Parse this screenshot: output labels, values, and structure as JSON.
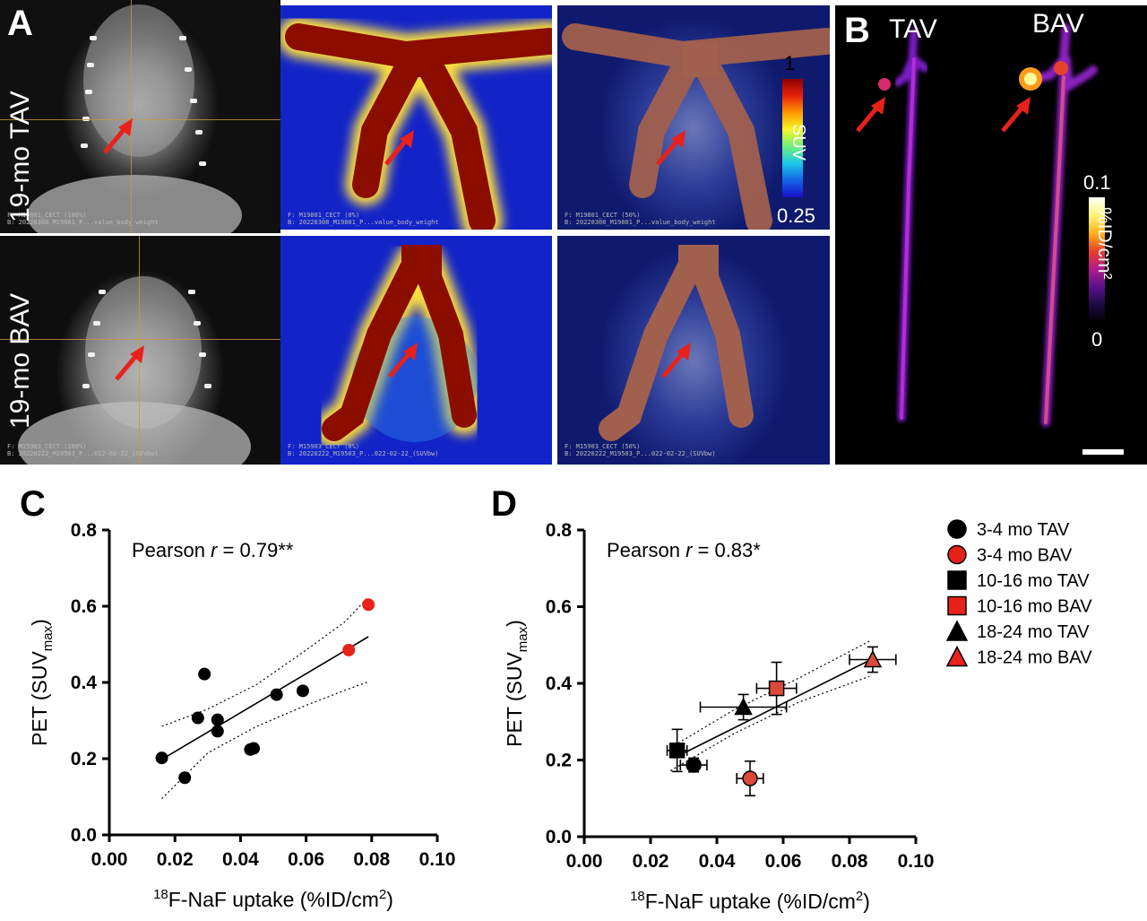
{
  "panels": {
    "a_tag": "A",
    "b_tag": "B",
    "c_tag": "C",
    "d_tag": "D"
  },
  "panel_a": {
    "row1_label": "19-mo TAV",
    "row2_label": "19-mo BAV",
    "colorbar": {
      "max": "1",
      "min": "0.25",
      "label": "SUV"
    },
    "footnotes": {
      "r1c1": "F: M19801_CECT (100%)\nB: 20220308_M19801_P...value_body_weight",
      "r1c2": "F: M19801_CECT (0%)\nB: 20220308_M19801_P...value_body_weight",
      "r1c3": "F: M19801_CECT (50%)\nB: 20220308_M19801_P...value_body_weight",
      "r2c1": "F: M15903_CECT (100%)\nB: 20220222_M19503_P...022-02-22_(SUVbw)",
      "r2c2": "F: M15903_CECT (0%)\nB: 20220222_M19503_P...022-02-22_(SUVbw)",
      "r2c3": "F: M15903_CECT (50%)\nB: 20220222_M19503_P...022-02-22_(SUVbw)"
    }
  },
  "panel_b": {
    "tav_label": "TAV",
    "bav_label": "BAV",
    "colorbar": {
      "max": "0.1",
      "min": "0",
      "label": "%ID/cm²"
    }
  },
  "colors": {
    "black_series": "#000000",
    "red_series": "#e8211b",
    "red_marker_fill": "#d94a3a",
    "pet_background": "#1224c8",
    "arrow": "#e8211b"
  },
  "chart_data": [
    {
      "type": "scatter",
      "panel": "C",
      "annotation": {
        "prefix": "Pearson ",
        "r": "r",
        "suffix": " = 0.79**"
      },
      "xlabel_sup": "18",
      "xlabel_main": "F-NaF uptake (%ID/cm",
      "xlabel_sup2": "2",
      "xlabel_end": ")",
      "ylabel_main": "PET (SUV",
      "ylabel_sub": "max",
      "ylabel_end": ")",
      "xlim": [
        0.0,
        0.1
      ],
      "ylim": [
        0.0,
        0.8
      ],
      "xticks": [
        "0.00",
        "0.02",
        "0.04",
        "0.06",
        "0.08",
        "0.10"
      ],
      "yticks": [
        "0.0",
        "0.2",
        "0.4",
        "0.6",
        "0.8"
      ],
      "series": [
        {
          "color": "#000000",
          "points": [
            [
              0.016,
              0.202
            ],
            [
              0.023,
              0.15
            ],
            [
              0.027,
              0.307
            ],
            [
              0.029,
              0.422
            ],
            [
              0.033,
              0.302
            ],
            [
              0.033,
              0.272
            ],
            [
              0.043,
              0.224
            ],
            [
              0.044,
              0.227
            ],
            [
              0.051,
              0.368
            ],
            [
              0.059,
              0.378
            ]
          ]
        },
        {
          "color": "#e8211b",
          "points": [
            [
              0.073,
              0.485
            ],
            [
              0.079,
              0.604
            ]
          ]
        }
      ],
      "fit": {
        "x": [
          0.016,
          0.079
        ],
        "y": [
          0.198,
          0.52
        ]
      },
      "ci_upper": [
        [
          0.016,
          0.285
        ],
        [
          0.03,
          0.33
        ],
        [
          0.045,
          0.395
        ],
        [
          0.06,
          0.485
        ],
        [
          0.072,
          0.56
        ],
        [
          0.079,
          0.625
        ]
      ],
      "ci_lower": [
        [
          0.016,
          0.095
        ],
        [
          0.03,
          0.215
        ],
        [
          0.045,
          0.285
        ],
        [
          0.06,
          0.34
        ],
        [
          0.072,
          0.38
        ],
        [
          0.079,
          0.402
        ]
      ]
    },
    {
      "type": "scatter",
      "panel": "D",
      "annotation": {
        "prefix": "Pearson ",
        "r": "r",
        "suffix": " = 0.83*"
      },
      "xlabel_sup": "18",
      "xlabel_main": "F-NaF uptake (%ID/cm",
      "xlabel_sup2": "2",
      "xlabel_end": ")",
      "ylabel_main": "PET (SUV",
      "ylabel_sub": "max",
      "ylabel_end": ")",
      "xlim": [
        0.0,
        0.1
      ],
      "ylim": [
        0.0,
        0.8
      ],
      "xticks": [
        "0.00",
        "0.02",
        "0.04",
        "0.06",
        "0.08",
        "0.10"
      ],
      "yticks": [
        "0.0",
        "0.2",
        "0.4",
        "0.6",
        "0.8"
      ],
      "series": [
        {
          "name": "3-4 mo TAV",
          "shape": "circle",
          "fill": "#000000",
          "x": 0.033,
          "y": 0.187,
          "xerr": 0.004,
          "yerr": 0.018
        },
        {
          "name": "3-4 mo BAV",
          "shape": "circle",
          "fill": "#d94a3a",
          "x": 0.05,
          "y": 0.152,
          "xerr": 0.004,
          "yerr": 0.045
        },
        {
          "name": "10-16 mo TAV",
          "shape": "square",
          "fill": "#000000",
          "x": 0.028,
          "y": 0.225,
          "xerr": 0.003,
          "yerr": 0.055
        },
        {
          "name": "10-16 mo BAV",
          "shape": "square",
          "fill": "#d94a3a",
          "x": 0.058,
          "y": 0.387,
          "xerr": 0.006,
          "yerr": 0.068
        },
        {
          "name": "18-24 mo TAV",
          "shape": "triangle",
          "fill": "#000000",
          "x": 0.048,
          "y": 0.338,
          "xerr": 0.013,
          "yerr": 0.033
        },
        {
          "name": "18-24 mo BAV",
          "shape": "triangle",
          "fill": "#d94a3a",
          "x": 0.087,
          "y": 0.462,
          "xerr": 0.007,
          "yerr": 0.033
        }
      ],
      "fit": {
        "x": [
          0.027,
          0.086
        ],
        "y": [
          0.205,
          0.46
        ]
      },
      "ci_upper": [
        [
          0.026,
          0.232
        ],
        [
          0.045,
          0.33
        ],
        [
          0.065,
          0.415
        ],
        [
          0.086,
          0.51
        ]
      ],
      "ci_lower": [
        [
          0.026,
          0.172
        ],
        [
          0.045,
          0.268
        ],
        [
          0.065,
          0.352
        ],
        [
          0.086,
          0.418
        ]
      ]
    }
  ]
}
